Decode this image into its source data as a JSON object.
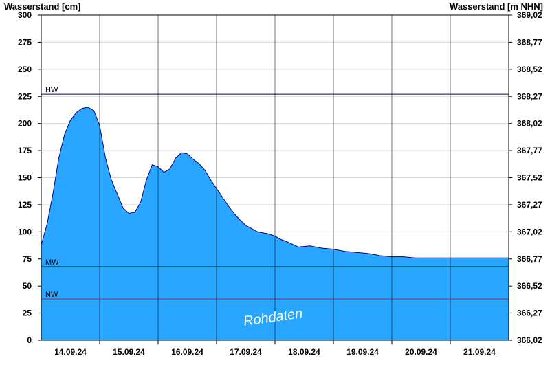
{
  "chart_data": {
    "type": "area",
    "title_left": "Wasserstand [cm]",
    "title_right": "Wasserstand [m NHN]",
    "watermark": "Rohdaten",
    "ylim": [
      0,
      300
    ],
    "y_ticks": [
      0,
      25,
      50,
      75,
      100,
      125,
      150,
      175,
      200,
      225,
      250,
      275,
      300
    ],
    "y2_ticks": [
      "366,02",
      "366,27",
      "366,52",
      "366,77",
      "367,02",
      "367,27",
      "367,52",
      "367,77",
      "368,02",
      "368,27",
      "368,52",
      "368,77",
      "369,02"
    ],
    "x_range": [
      0,
      8
    ],
    "x_day_lines": [
      1,
      2,
      3,
      4,
      5,
      6,
      7
    ],
    "x_tick_labels": [
      {
        "x": 0.5,
        "label": "14.09.24"
      },
      {
        "x": 1.5,
        "label": "15.09.24"
      },
      {
        "x": 2.5,
        "label": "16.09.24"
      },
      {
        "x": 3.5,
        "label": "17.09.24"
      },
      {
        "x": 4.5,
        "label": "18.09.24"
      },
      {
        "x": 5.5,
        "label": "19.09.24"
      },
      {
        "x": 6.5,
        "label": "20.09.24"
      },
      {
        "x": 7.5,
        "label": "21.09.24"
      }
    ],
    "reference_lines": [
      {
        "name": "HW",
        "value": 227,
        "color": "#000080"
      },
      {
        "name": "MW",
        "value": 68,
        "color": "#006400"
      },
      {
        "name": "NW",
        "value": 38,
        "color": "#b22222"
      }
    ],
    "series": [
      {
        "fill_color": "#29a6ff",
        "line_color": "#00008b",
        "x": [
          0,
          0.1,
          0.2,
          0.3,
          0.4,
          0.5,
          0.6,
          0.7,
          0.8,
          0.9,
          1.0,
          1.1,
          1.2,
          1.3,
          1.4,
          1.5,
          1.6,
          1.7,
          1.8,
          1.9,
          2.0,
          2.1,
          2.2,
          2.3,
          2.4,
          2.5,
          2.6,
          2.7,
          2.8,
          2.9,
          3.0,
          3.1,
          3.2,
          3.3,
          3.4,
          3.5,
          3.6,
          3.7,
          3.8,
          3.9,
          4.0,
          4.1,
          4.2,
          4.4,
          4.6,
          4.8,
          5.0,
          5.2,
          5.4,
          5.6,
          5.8,
          6.0,
          6.2,
          6.4,
          6.6,
          6.8,
          7.0,
          7.2,
          7.4,
          7.6,
          7.8,
          8.0
        ],
        "values": [
          88,
          107,
          135,
          168,
          190,
          203,
          210,
          214,
          215,
          212,
          198,
          168,
          148,
          135,
          122,
          117,
          118,
          127,
          148,
          162,
          160,
          155,
          158,
          168,
          173,
          172,
          167,
          163,
          157,
          148,
          140,
          132,
          124,
          117,
          111,
          106,
          103,
          100,
          99,
          98,
          96,
          93,
          91,
          86,
          87,
          85,
          84,
          82,
          81,
          80,
          78,
          77,
          77,
          76,
          76,
          76,
          76,
          76,
          76,
          76,
          76,
          76
        ]
      }
    ]
  }
}
